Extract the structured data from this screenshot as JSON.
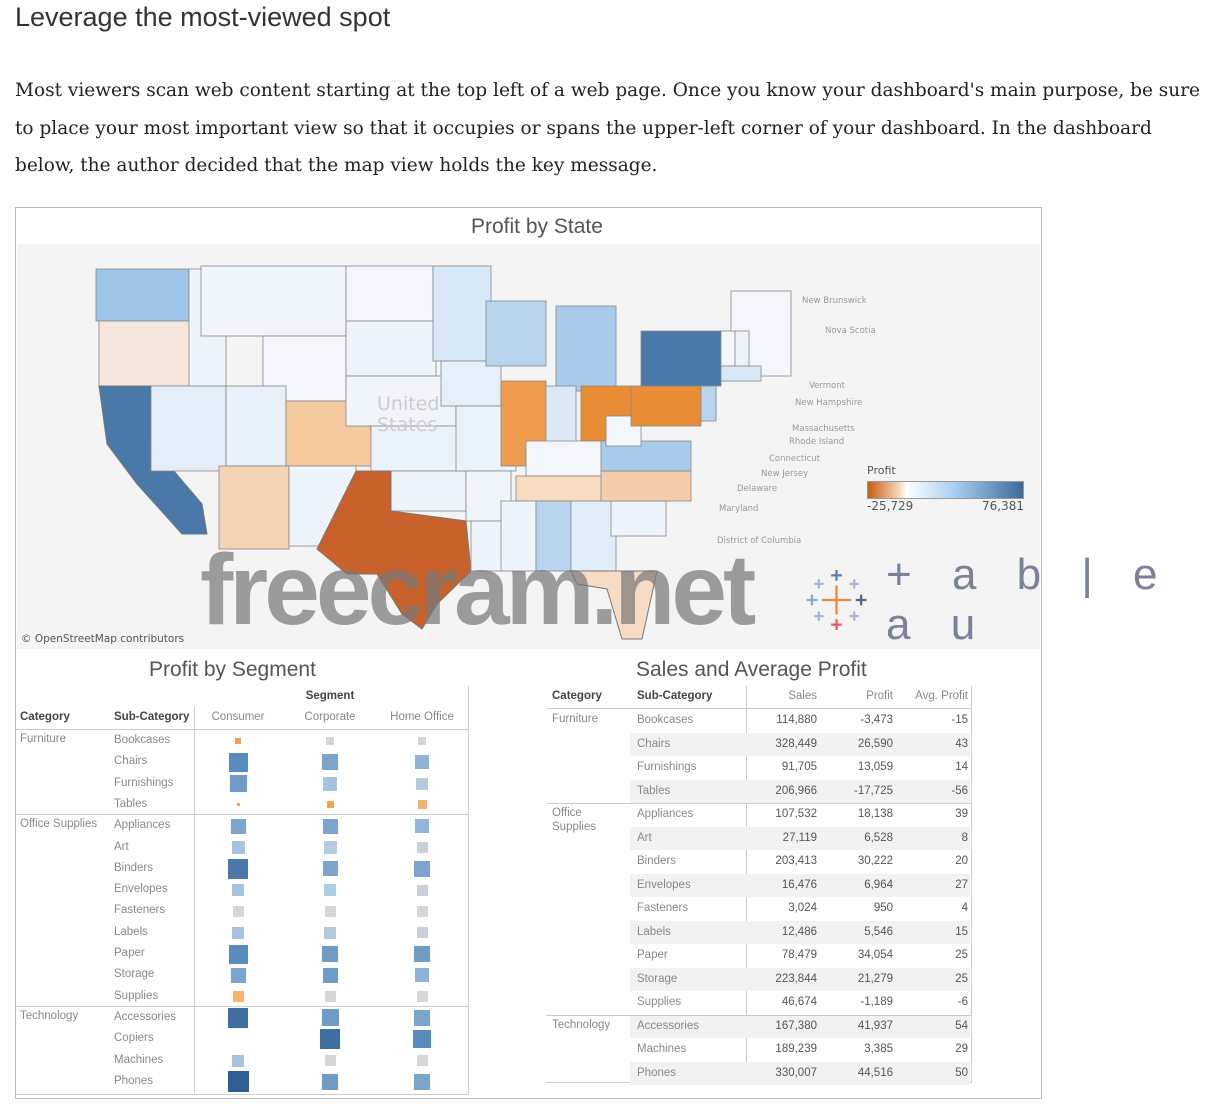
{
  "heading": "Leverage the most-viewed spot",
  "paragraph": "Most viewers scan web content starting at the top left of a web page. Once you know your dashboard's main purpose, be sure to place your most important view so that it occupies or spans the upper-left corner of your dashboard. In the dashboard below, the author decided that the map view holds the key message.",
  "map": {
    "title": "Profit by State",
    "attribution": "© OpenStreetMap contributors",
    "country_label": "United States",
    "legend": {
      "title": "Profit",
      "min": "-25,729",
      "max": "76,381"
    },
    "labels": [
      "New Brunswick",
      "Nova Scotia",
      "Vermont",
      "New Hampshire",
      "Massachusetts",
      "Rhode Island",
      "Connecticut",
      "New Jersey",
      "Delaware",
      "Maryland",
      "District of Columbia"
    ],
    "states": [
      {
        "name": "WA",
        "color": "#9ec5e8"
      },
      {
        "name": "OR",
        "color": "#f5e6dc"
      },
      {
        "name": "CA",
        "color": "#4a78a8"
      },
      {
        "name": "ID",
        "color": "#eef4fb"
      },
      {
        "name": "NV",
        "color": "#e4eef8"
      },
      {
        "name": "MT",
        "color": "#f0f5fb"
      },
      {
        "name": "WY",
        "color": "#f3f7fb"
      },
      {
        "name": "UT",
        "color": "#e8f1fa"
      },
      {
        "name": "AZ",
        "color": "#f6d3b5"
      },
      {
        "name": "CO",
        "color": "#f4c99e"
      },
      {
        "name": "NM",
        "color": "#eef4fb"
      },
      {
        "name": "ND",
        "color": "#f3f7fb"
      },
      {
        "name": "SD",
        "color": "#eef4fb"
      },
      {
        "name": "NE",
        "color": "#f0f5fb"
      },
      {
        "name": "KS",
        "color": "#eaf2fa"
      },
      {
        "name": "OK",
        "color": "#eef4fb"
      },
      {
        "name": "TX",
        "color": "#c8612a"
      },
      {
        "name": "MN",
        "color": "#d8e8f6"
      },
      {
        "name": "IA",
        "color": "#e6f0fa"
      },
      {
        "name": "MO",
        "color": "#eaf2fa"
      },
      {
        "name": "AR",
        "color": "#f0f5fb"
      },
      {
        "name": "LA",
        "color": "#eef4fb"
      },
      {
        "name": "WI",
        "color": "#b8d4ee"
      },
      {
        "name": "IL",
        "color": "#ef9c4e"
      },
      {
        "name": "MI",
        "color": "#a9cbea"
      },
      {
        "name": "IN",
        "color": "#dbe9f6"
      },
      {
        "name": "OH",
        "color": "#ea8b36"
      },
      {
        "name": "KY",
        "color": "#f3f7fb"
      },
      {
        "name": "TN",
        "color": "#f8dcc2"
      },
      {
        "name": "MS",
        "color": "#eef4fb"
      },
      {
        "name": "AL",
        "color": "#b8d4ee"
      },
      {
        "name": "GA",
        "color": "#e1edf8"
      },
      {
        "name": "FL",
        "color": "#f7dcc5"
      },
      {
        "name": "SC",
        "color": "#eef4fb"
      },
      {
        "name": "NC",
        "color": "#f6ccaa"
      },
      {
        "name": "VA",
        "color": "#a9cbea"
      },
      {
        "name": "WV",
        "color": "#f3f7fb"
      },
      {
        "name": "PA",
        "color": "#ea8b36"
      },
      {
        "name": "NY",
        "color": "#4a78a8"
      },
      {
        "name": "ME",
        "color": "#f3f7fb"
      },
      {
        "name": "VT",
        "color": "#f3f7fb"
      },
      {
        "name": "NH",
        "color": "#eef4fb"
      },
      {
        "name": "MA",
        "color": "#d8e8f6"
      },
      {
        "name": "NJ",
        "color": "#b8d4ee"
      }
    ]
  },
  "segment": {
    "title": "Profit by Segment",
    "segment_header": "Segment",
    "headers": [
      "Category",
      "Sub-Category",
      "Consumer",
      "Corporate",
      "Home Office"
    ],
    "rows": [
      {
        "cat": "Furniture",
        "sub": "Bookcases",
        "marks": [
          [
            "#f0a35a",
            0.3
          ],
          [
            "#d4d6d8",
            0.4
          ],
          [
            "#d4d6d8",
            0.4
          ]
        ]
      },
      {
        "cat": "",
        "sub": "Chairs",
        "marks": [
          [
            "#5a8bbd",
            0.95
          ],
          [
            "#7ca4cc",
            0.8
          ],
          [
            "#8fb3d6",
            0.7
          ]
        ]
      },
      {
        "cat": "",
        "sub": "Furnishings",
        "marks": [
          [
            "#6f9bc8",
            0.85
          ],
          [
            "#a6c4e0",
            0.7
          ],
          [
            "#b4c9dc",
            0.6
          ]
        ]
      },
      {
        "cat": "",
        "sub": "Tables",
        "marks": [
          [
            "#f0a35a",
            0.05
          ],
          [
            "#f0a35a",
            0.35
          ],
          [
            "#f5b370",
            0.45
          ]
        ]
      },
      {
        "cat": "Office Supplies",
        "sub": "Appliances",
        "marks": [
          [
            "#7ca4cc",
            0.75
          ],
          [
            "#7ca4cc",
            0.75
          ],
          [
            "#93b6d8",
            0.7
          ]
        ]
      },
      {
        "cat": "",
        "sub": "Art",
        "marks": [
          [
            "#a6c4e0",
            0.65
          ],
          [
            "#b4cde4",
            0.65
          ],
          [
            "#c8d0d8",
            0.55
          ]
        ]
      },
      {
        "cat": "",
        "sub": "Binders",
        "marks": [
          [
            "#4a78a8",
            1.0
          ],
          [
            "#7ca4cc",
            0.75
          ],
          [
            "#7ca4cc",
            0.8
          ]
        ]
      },
      {
        "cat": "",
        "sub": "Envelopes",
        "marks": [
          [
            "#a6c4e0",
            0.6
          ],
          [
            "#b0cce4",
            0.6
          ],
          [
            "#c8d0d8",
            0.55
          ]
        ]
      },
      {
        "cat": "",
        "sub": "Fasteners",
        "marks": [
          [
            "#d4d6d8",
            0.55
          ],
          [
            "#d4d6d8",
            0.55
          ],
          [
            "#d4d6d8",
            0.55
          ]
        ]
      },
      {
        "cat": "",
        "sub": "Labels",
        "marks": [
          [
            "#a6c4e0",
            0.6
          ],
          [
            "#b4c9dc",
            0.6
          ],
          [
            "#c8d0d8",
            0.55
          ]
        ]
      },
      {
        "cat": "",
        "sub": "Paper",
        "marks": [
          [
            "#5a8bbd",
            0.95
          ],
          [
            "#6f9bc8",
            0.8
          ],
          [
            "#6f9bc8",
            0.8
          ]
        ]
      },
      {
        "cat": "",
        "sub": "Storage",
        "marks": [
          [
            "#7ca4cc",
            0.75
          ],
          [
            "#6f9bc8",
            0.75
          ],
          [
            "#8fb3d6",
            0.7
          ]
        ]
      },
      {
        "cat": "",
        "sub": "Supplies",
        "marks": [
          [
            "#f5b370",
            0.55
          ],
          [
            "#d4d6d8",
            0.55
          ],
          [
            "#d4d6d8",
            0.55
          ]
        ]
      },
      {
        "cat": "Technology",
        "sub": "Accessories",
        "marks": [
          [
            "#3f6e9f",
            1.0
          ],
          [
            "#6f9bc8",
            0.85
          ],
          [
            "#7ca4cc",
            0.8
          ]
        ]
      },
      {
        "cat": "",
        "sub": "Copiers",
        "marks": [
          [
            "",
            0
          ],
          [
            "#3f6e9f",
            1.0
          ],
          [
            "#5a8bbd",
            0.9
          ]
        ]
      },
      {
        "cat": "",
        "sub": "Machines",
        "marks": [
          [
            "#a6c4e0",
            0.6
          ],
          [
            "#d4d6d8",
            0.55
          ],
          [
            "#d4d6d8",
            0.55
          ]
        ]
      },
      {
        "cat": "",
        "sub": "Phones",
        "marks": [
          [
            "#2f5f92",
            1.05
          ],
          [
            "#6f9bc8",
            0.8
          ],
          [
            "#7ca4cc",
            0.8
          ]
        ]
      }
    ]
  },
  "sales": {
    "title": "Sales and Average Profit",
    "headers": [
      "Category",
      "Sub-Category",
      "Sales",
      "Profit",
      "Avg. Profit"
    ],
    "rows": [
      {
        "cat": "Furniture",
        "sub": "Bookcases",
        "sales": "114,880",
        "profit": "-3,473",
        "avg": "-15"
      },
      {
        "cat": "",
        "sub": "Chairs",
        "sales": "328,449",
        "profit": "26,590",
        "avg": "43"
      },
      {
        "cat": "",
        "sub": "Furnishings",
        "sales": "91,705",
        "profit": "13,059",
        "avg": "14"
      },
      {
        "cat": "",
        "sub": "Tables",
        "sales": "206,966",
        "profit": "-17,725",
        "avg": "-56"
      },
      {
        "cat": "Office Supplies",
        "sub": "Appliances",
        "sales": "107,532",
        "profit": "18,138",
        "avg": "39"
      },
      {
        "cat": "",
        "sub": "Art",
        "sales": "27,119",
        "profit": "6,528",
        "avg": "8"
      },
      {
        "cat": "",
        "sub": "Binders",
        "sales": "203,413",
        "profit": "30,222",
        "avg": "20"
      },
      {
        "cat": "",
        "sub": "Envelopes",
        "sales": "16,476",
        "profit": "6,964",
        "avg": "27"
      },
      {
        "cat": "",
        "sub": "Fasteners",
        "sales": "3,024",
        "profit": "950",
        "avg": "4"
      },
      {
        "cat": "",
        "sub": "Labels",
        "sales": "12,486",
        "profit": "5,546",
        "avg": "15"
      },
      {
        "cat": "",
        "sub": "Paper",
        "sales": "78,479",
        "profit": "34,054",
        "avg": "25"
      },
      {
        "cat": "",
        "sub": "Storage",
        "sales": "223,844",
        "profit": "21,279",
        "avg": "25"
      },
      {
        "cat": "",
        "sub": "Supplies",
        "sales": "46,674",
        "profit": "-1,189",
        "avg": "-6"
      },
      {
        "cat": "Technology",
        "sub": "Accessories",
        "sales": "167,380",
        "profit": "41,937",
        "avg": "54"
      },
      {
        "cat": "",
        "sub": "Machines",
        "sales": "189,239",
        "profit": "3,385",
        "avg": "29"
      },
      {
        "cat": "",
        "sub": "Phones",
        "sales": "330,007",
        "profit": "44,516",
        "avg": "50"
      }
    ]
  },
  "logo": "tableau",
  "watermark": "freecram.net"
}
